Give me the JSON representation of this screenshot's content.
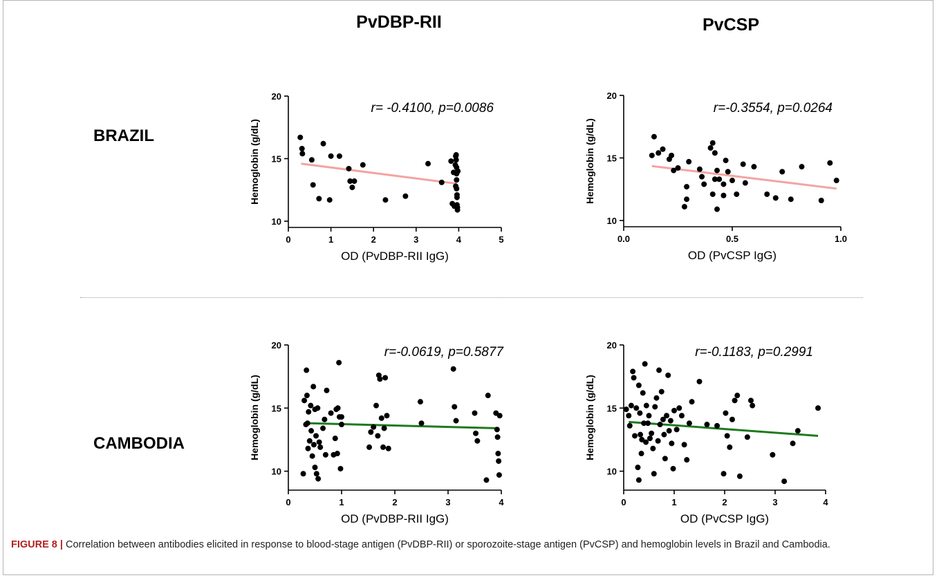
{
  "columns": [
    "PvDBP-RII",
    "PvCSP"
  ],
  "rows": [
    "BRAZIL",
    "CAMBODIA"
  ],
  "caption": {
    "label": "FIGURE 8 |",
    "text": " Correlation between antibodies elicited in response to blood-stage antigen (PvDBP-RII) or sporozoite-stage antigen (PvCSP) and hemoglobin levels in Brazil and Cambodia."
  },
  "colors": {
    "brazil_fit": "#f4a3a3",
    "cambodia_fit": "#1f7a1f",
    "points": "#000000"
  },
  "chart_data": [
    {
      "type": "scatter",
      "panel": "Brazil / PvDBP-RII",
      "xlabel": "OD (PvDBP-RII IgG)",
      "ylabel": "Hemoglobin (g/dL)",
      "annotation": "r= -0.4100, p=0.0086",
      "xlim": [
        0,
        5
      ],
      "ylim": [
        9.5,
        20
      ],
      "xticks": [
        "0",
        "1",
        "2",
        "3",
        "4",
        "5"
      ],
      "xtick_values": [
        0,
        1,
        2,
        3,
        4,
        5
      ],
      "yticks": [
        "10",
        "15",
        "20"
      ],
      "ytick_values": [
        10,
        15,
        20
      ],
      "fit": {
        "x": [
          0.3,
          3.95
        ],
        "y": [
          14.6,
          13.0
        ]
      },
      "points": {
        "x": [
          0.28,
          0.32,
          0.33,
          0.55,
          0.58,
          0.72,
          0.82,
          0.97,
          1.0,
          1.2,
          1.42,
          1.45,
          1.5,
          1.55,
          1.75,
          2.28,
          2.75,
          3.28,
          3.6,
          3.82,
          3.85,
          3.88,
          3.9,
          3.92,
          3.93,
          3.93,
          3.94,
          3.94,
          3.95,
          3.95,
          3.95,
          3.95,
          3.96,
          3.96,
          3.96,
          3.97,
          3.97,
          3.98
        ],
        "y": [
          16.7,
          15.8,
          15.4,
          14.9,
          12.9,
          11.8,
          16.2,
          11.7,
          15.2,
          15.2,
          14.2,
          13.2,
          12.7,
          13.2,
          14.5,
          11.7,
          12.0,
          14.6,
          13.1,
          14.8,
          11.4,
          13.9,
          11.2,
          14.5,
          15.2,
          12.8,
          15.3,
          14.9,
          14.3,
          13.8,
          13.3,
          12.6,
          12.1,
          11.9,
          11.3,
          11.1,
          10.9,
          14.0
        ]
      }
    },
    {
      "type": "scatter",
      "panel": "Brazil / PvCSP",
      "xlabel": "OD (PvCSP IgG)",
      "ylabel": "Hemoglobin (g/dL)",
      "annotation": "r=-0.3554, p=0.0264",
      "xlim": [
        0,
        1.0
      ],
      "ylim": [
        9.5,
        20
      ],
      "xticks": [
        "0.0",
        "0.5",
        "1.0"
      ],
      "xtick_values": [
        0,
        0.5,
        1.0
      ],
      "yticks": [
        "10",
        "15",
        "20"
      ],
      "ytick_values": [
        10,
        15,
        20
      ],
      "fit": {
        "x": [
          0.13,
          0.98
        ],
        "y": [
          14.35,
          12.55
        ]
      },
      "points": {
        "x": [
          0.13,
          0.14,
          0.16,
          0.18,
          0.21,
          0.22,
          0.23,
          0.25,
          0.28,
          0.29,
          0.29,
          0.3,
          0.35,
          0.36,
          0.37,
          0.4,
          0.41,
          0.41,
          0.42,
          0.42,
          0.43,
          0.43,
          0.44,
          0.46,
          0.46,
          0.47,
          0.48,
          0.5,
          0.52,
          0.55,
          0.56,
          0.6,
          0.66,
          0.7,
          0.73,
          0.77,
          0.82,
          0.91,
          0.95,
          0.98
        ],
        "y": [
          15.2,
          16.7,
          15.4,
          15.7,
          14.9,
          15.2,
          14.0,
          14.2,
          11.1,
          11.7,
          12.7,
          14.7,
          14.1,
          13.5,
          12.9,
          15.8,
          12.1,
          16.2,
          15.4,
          13.3,
          14.0,
          10.9,
          13.3,
          12.9,
          12.0,
          14.8,
          13.9,
          13.2,
          12.1,
          14.5,
          13.0,
          14.3,
          12.1,
          11.8,
          13.9,
          11.7,
          14.3,
          11.6,
          14.6,
          13.2
        ]
      }
    },
    {
      "type": "scatter",
      "panel": "Cambodia / PvDBP-RII",
      "xlabel": "OD (PvDBP-RII IgG)",
      "ylabel": "Hemoglobin (g/dL)",
      "annotation": "r=-0.0619, p=0.5877",
      "xlim": [
        0,
        4
      ],
      "ylim": [
        8.5,
        20
      ],
      "xticks": [
        "0",
        "1",
        "2",
        "3",
        "4"
      ],
      "xtick_values": [
        0,
        1,
        2,
        3,
        4
      ],
      "yticks": [
        "10",
        "15",
        "20"
      ],
      "ytick_values": [
        10,
        15,
        20
      ],
      "fit": {
        "x": [
          0.4,
          3.95
        ],
        "y": [
          13.8,
          13.4
        ]
      },
      "points": {
        "x": [
          0.28,
          0.3,
          0.33,
          0.34,
          0.35,
          0.36,
          0.37,
          0.38,
          0.4,
          0.42,
          0.43,
          0.45,
          0.47,
          0.48,
          0.5,
          0.5,
          0.52,
          0.53,
          0.55,
          0.56,
          0.58,
          0.6,
          0.65,
          0.68,
          0.7,
          0.72,
          0.8,
          0.85,
          0.88,
          0.9,
          0.92,
          0.93,
          0.95,
          0.96,
          0.98,
          1.0,
          1.0,
          1.52,
          1.55,
          1.6,
          1.65,
          1.68,
          1.7,
          1.72,
          1.75,
          1.78,
          1.8,
          1.82,
          1.85,
          1.88,
          2.48,
          2.5,
          3.1,
          3.12,
          3.15,
          3.5,
          3.52,
          3.55,
          3.72,
          3.75,
          3.9,
          3.92,
          3.93,
          3.94,
          3.95,
          3.96,
          3.97
        ],
        "y": [
          9.8,
          15.6,
          13.7,
          18.0,
          16.0,
          13.8,
          11.8,
          14.7,
          12.4,
          15.2,
          13.2,
          11.2,
          16.7,
          12.1,
          14.9,
          10.3,
          12.8,
          9.8,
          15.0,
          9.4,
          12.3,
          11.9,
          13.4,
          14.1,
          11.3,
          16.4,
          14.6,
          11.3,
          12.6,
          14.9,
          11.4,
          15.0,
          18.6,
          14.3,
          10.2,
          13.7,
          14.3,
          11.9,
          13.1,
          13.5,
          15.2,
          12.8,
          17.6,
          17.3,
          14.2,
          11.9,
          13.4,
          17.4,
          14.4,
          11.8,
          15.5,
          13.8,
          18.1,
          15.1,
          14.0,
          14.6,
          13.0,
          12.4,
          9.3,
          16.0,
          14.6,
          13.3,
          12.7,
          11.4,
          10.8,
          9.7,
          14.4
        ]
      }
    },
    {
      "type": "scatter",
      "panel": "Cambodia / PvCSP",
      "xlabel": "OD (PvCSP IgG)",
      "ylabel": "Hemoglobin (g/dL)",
      "annotation": "r=-0.1183, p=0.2991",
      "xlim": [
        0,
        4
      ],
      "ylim": [
        8.5,
        20
      ],
      "xticks": [
        "0",
        "1",
        "2",
        "3",
        "4"
      ],
      "xtick_values": [
        0,
        1,
        2,
        3,
        4
      ],
      "yticks": [
        "10",
        "15",
        "20"
      ],
      "ytick_values": [
        10,
        15,
        20
      ],
      "fit": {
        "x": [
          0.1,
          3.85
        ],
        "y": [
          13.9,
          12.8
        ]
      },
      "points": {
        "x": [
          0.05,
          0.1,
          0.12,
          0.15,
          0.18,
          0.2,
          0.22,
          0.25,
          0.28,
          0.3,
          0.3,
          0.32,
          0.33,
          0.35,
          0.36,
          0.38,
          0.4,
          0.42,
          0.44,
          0.45,
          0.48,
          0.5,
          0.52,
          0.55,
          0.58,
          0.6,
          0.62,
          0.65,
          0.68,
          0.7,
          0.72,
          0.75,
          0.78,
          0.8,
          0.82,
          0.85,
          0.88,
          0.9,
          0.93,
          0.95,
          0.98,
          1.0,
          1.05,
          1.1,
          1.15,
          1.2,
          1.25,
          1.3,
          1.35,
          1.5,
          1.65,
          1.85,
          1.98,
          2.02,
          2.05,
          2.1,
          2.15,
          2.2,
          2.25,
          2.3,
          2.45,
          2.52,
          2.55,
          2.95,
          3.18,
          3.35,
          3.45,
          3.85
        ],
        "y": [
          14.9,
          14.4,
          13.6,
          15.2,
          17.9,
          17.4,
          12.8,
          15.0,
          10.3,
          9.3,
          16.8,
          14.6,
          12.9,
          11.4,
          12.5,
          16.2,
          13.8,
          18.5,
          12.3,
          15.2,
          13.8,
          14.4,
          12.6,
          13.0,
          11.8,
          9.8,
          15.1,
          15.8,
          12.4,
          18.0,
          13.7,
          16.3,
          14.1,
          12.9,
          11.0,
          14.4,
          17.6,
          13.2,
          14.0,
          12.2,
          10.2,
          14.8,
          13.3,
          15.0,
          14.4,
          12.1,
          10.9,
          13.8,
          15.5,
          17.1,
          13.7,
          13.6,
          9.8,
          14.6,
          12.8,
          11.9,
          14.1,
          15.6,
          16.0,
          9.6,
          12.7,
          15.6,
          15.2,
          11.3,
          9.2,
          12.2,
          13.2,
          15.0
        ]
      }
    }
  ]
}
